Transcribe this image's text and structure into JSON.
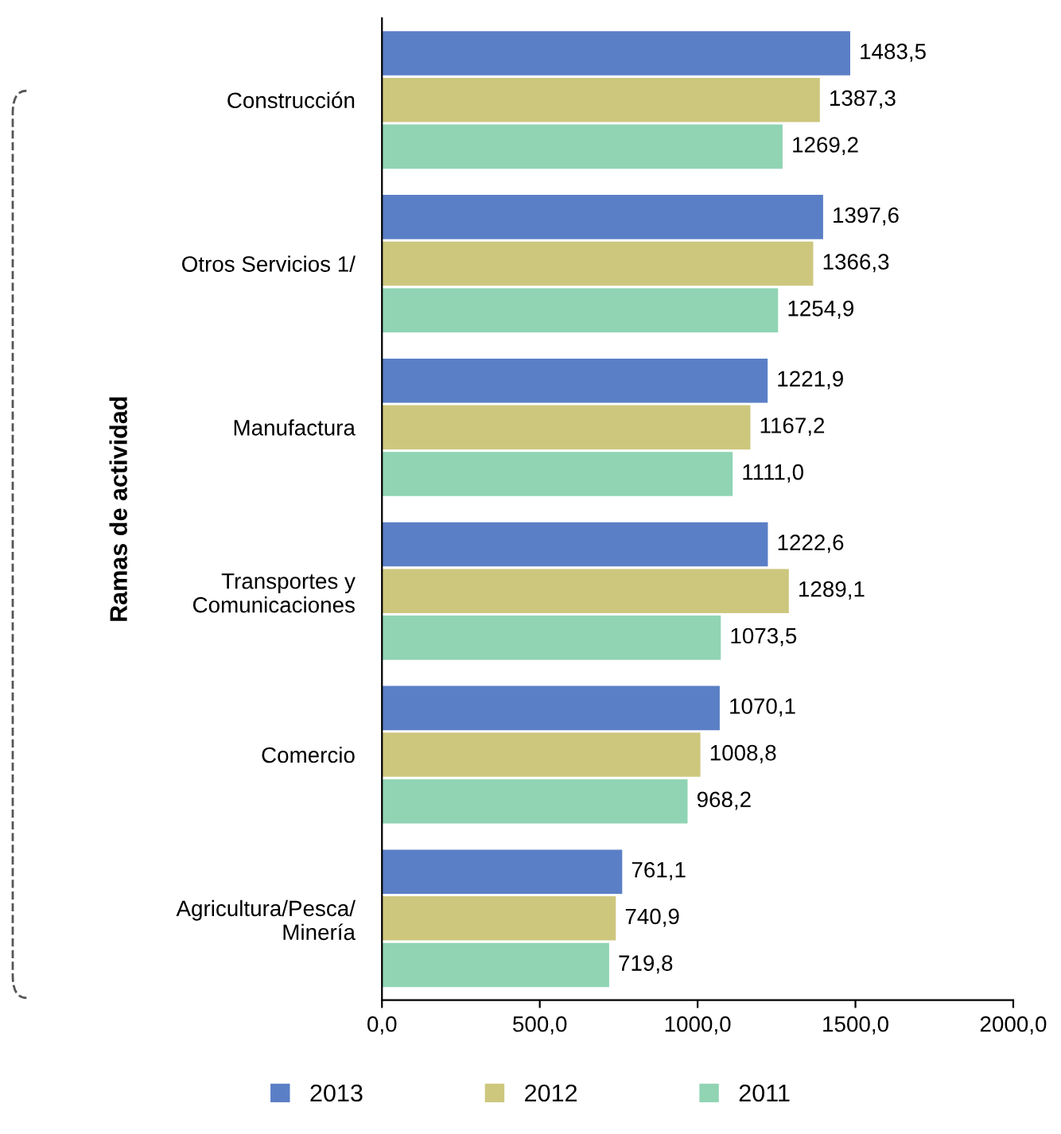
{
  "chart_data": {
    "type": "bar",
    "orientation": "horizontal",
    "ylabel": "Ramas de actividad",
    "categories": [
      "Construcción",
      "Otros Servicios 1/",
      "Manufactura",
      "Transportes y\nComunicaciones",
      "Comercio",
      "Agricultura/Pesca/\nMinería"
    ],
    "series": [
      {
        "name": "2013",
        "color": "#5b7fc6",
        "values": [
          1483.5,
          1397.6,
          1221.9,
          1222.6,
          1070.1,
          761.1
        ],
        "value_labels": [
          "1483,5",
          "1397,6",
          "1221,9",
          "1222,6",
          "1070,1",
          "761,1"
        ]
      },
      {
        "name": "2012",
        "color": "#cdc77e",
        "values": [
          1387.3,
          1366.3,
          1167.2,
          1289.1,
          1008.8,
          740.9
        ],
        "value_labels": [
          "1387,3",
          "1366,3",
          "1167,2",
          "1289,1",
          "1008,8",
          "740,9"
        ]
      },
      {
        "name": "2011",
        "color": "#90d4b4",
        "values": [
          1269.2,
          1254.9,
          1111.0,
          1073.5,
          968.2,
          719.8
        ],
        "value_labels": [
          "1269,2",
          "1254,9",
          "1111,0",
          "1073,5",
          "968,2",
          "719,8"
        ]
      }
    ],
    "xlim": [
      0,
      2000
    ],
    "xticks": [
      {
        "value": 0,
        "label": "0,0"
      },
      {
        "value": 500,
        "label": "500,0"
      },
      {
        "value": 1000,
        "label": "1000,0"
      },
      {
        "value": 1500,
        "label": "1500,0"
      },
      {
        "value": 2000,
        "label": "2000,0"
      }
    ],
    "grid": false,
    "legend": "bottom"
  }
}
